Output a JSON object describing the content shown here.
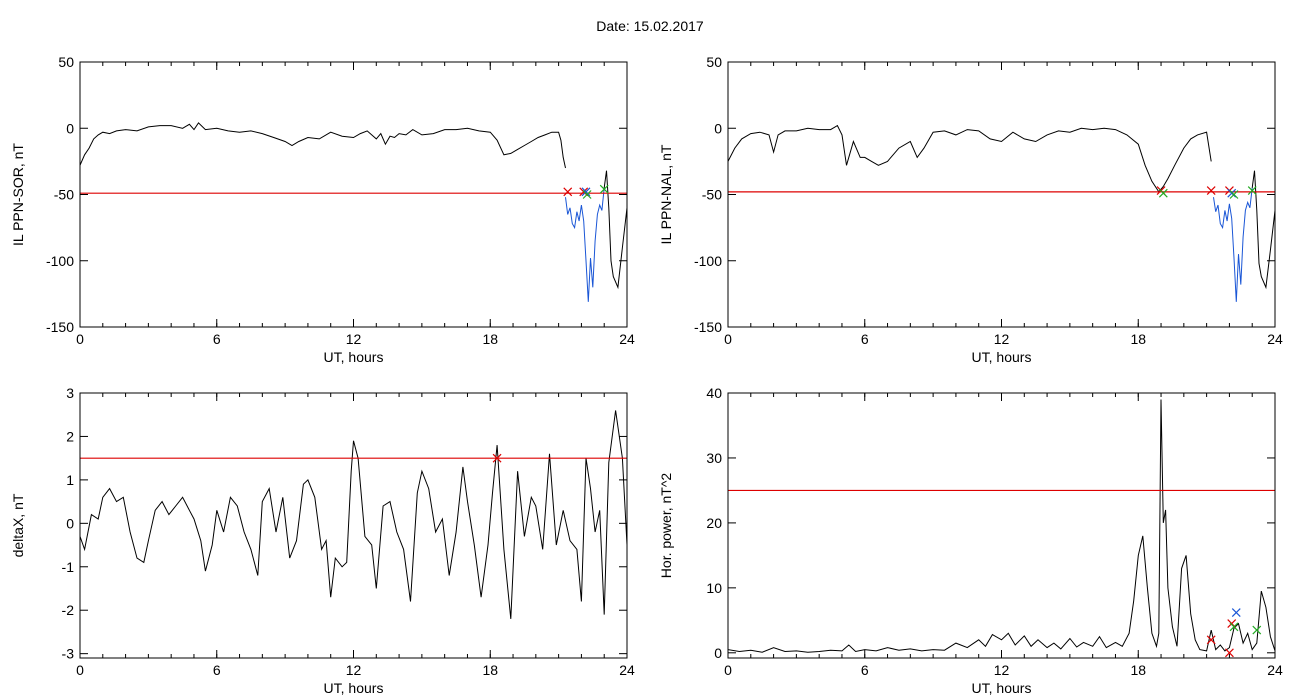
{
  "page": {
    "title": "Date:  15.02.2017"
  },
  "chart_data": [
    {
      "type": "line",
      "xlabel": "UT, hours",
      "ylabel": "IL PPN-SOR, nT",
      "xlim": [
        0,
        24
      ],
      "ylim": [
        -150,
        50
      ],
      "xticks": [
        0,
        6,
        12,
        18,
        24
      ],
      "yticks": [
        50,
        0,
        -50,
        -100,
        -150
      ],
      "threshold": -49,
      "threshold_color": "#dd0000",
      "grid": false,
      "series": [
        {
          "color": "#000000",
          "x": [
            0,
            0.2,
            0.4,
            0.6,
            0.8,
            1,
            1.3,
            1.6,
            2,
            2.5,
            3,
            3.5,
            4,
            4.5,
            4.8,
            5,
            5.2,
            5.5,
            6,
            6.5,
            7,
            7.5,
            8,
            8.5,
            9,
            9.3,
            9.6,
            10,
            10.5,
            11,
            11.5,
            12,
            12.3,
            12.6,
            13,
            13.2,
            13.4,
            13.6,
            13.8,
            14,
            14.3,
            14.6,
            15,
            15.5,
            16,
            16.5,
            17,
            17.5,
            18,
            18.3,
            18.6,
            18.9,
            19.2,
            19.5,
            19.8,
            20.1,
            20.4,
            20.7,
            21,
            21.1,
            21.2,
            21.3
          ],
          "y": [
            -28,
            -20,
            -15,
            -8,
            -5,
            -3,
            -4,
            -2,
            -1,
            -2,
            1,
            2,
            2,
            0,
            3,
            -1,
            4,
            -1,
            0,
            -2,
            -3,
            -2,
            -4,
            -7,
            -10,
            -13,
            -10,
            -7,
            -8,
            -3,
            -6,
            -7,
            -4,
            -2,
            -8,
            -4,
            -12,
            -6,
            -7,
            -4,
            -5,
            -1,
            -5,
            -4,
            -1,
            -1,
            0,
            -2,
            -3,
            -9,
            -20,
            -19,
            -16,
            -13,
            -10,
            -7,
            -5,
            -3,
            -3,
            -9,
            -22,
            -30
          ]
        },
        {
          "color": "#1a56d6",
          "x": [
            21.3,
            21.4,
            21.5,
            21.6,
            21.7,
            21.8,
            21.9,
            22,
            22.1,
            22.2,
            22.3,
            22.4,
            22.5,
            22.6,
            22.7,
            22.8,
            22.9,
            23
          ],
          "y": [
            -52,
            -65,
            -60,
            -72,
            -75,
            -63,
            -70,
            -58,
            -70,
            -100,
            -131,
            -98,
            -120,
            -85,
            -65,
            -58,
            -62,
            -45
          ]
        },
        {
          "color": "#000000",
          "x": [
            23,
            23.1,
            23.2,
            23.3,
            23.4,
            23.6,
            23.8,
            24
          ],
          "y": [
            -45,
            -32,
            -60,
            -100,
            -112,
            -120,
            -90,
            -60
          ]
        }
      ],
      "markers": [
        {
          "x": 21.4,
          "y": -48,
          "color": "#dd0000"
        },
        {
          "x": 22.1,
          "y": -48,
          "color": "#dd0000"
        },
        {
          "x": 22.2,
          "y": -48,
          "color": "#1a56d6"
        },
        {
          "x": 22.25,
          "y": -50,
          "color": "#22aa22"
        },
        {
          "x": 23.0,
          "y": -46,
          "color": "#22aa22"
        }
      ]
    },
    {
      "type": "line",
      "xlabel": "UT, hours",
      "ylabel": "IL PPN-NAL, nT",
      "xlim": [
        0,
        24
      ],
      "ylim": [
        -150,
        50
      ],
      "xticks": [
        0,
        6,
        12,
        18,
        24
      ],
      "yticks": [
        50,
        0,
        -50,
        -100,
        -150
      ],
      "threshold": -48,
      "threshold_color": "#dd0000",
      "grid": false,
      "series": [
        {
          "color": "#000000",
          "x": [
            0,
            0.3,
            0.6,
            1,
            1.4,
            1.8,
            2,
            2.2,
            2.5,
            3,
            3.5,
            4,
            4.5,
            4.8,
            5,
            5.2,
            5.5,
            5.8,
            6,
            6.3,
            6.6,
            7,
            7.5,
            8,
            8.3,
            8.6,
            9,
            9.5,
            10,
            10.5,
            11,
            11.5,
            12,
            12.5,
            13,
            13.5,
            14,
            14.5,
            15,
            15.5,
            16,
            16.5,
            17,
            17.5,
            18,
            18.3,
            18.6,
            18.9,
            19.1,
            19.3,
            19.6,
            20,
            20.3,
            20.6,
            21,
            21.2
          ],
          "y": [
            -25,
            -15,
            -8,
            -4,
            -3,
            -5,
            -18,
            -5,
            -2,
            -2,
            0,
            -1,
            -1,
            2,
            -5,
            -28,
            -10,
            -22,
            -22,
            -25,
            -28,
            -25,
            -15,
            -10,
            -22,
            -15,
            -3,
            -2,
            -5,
            -1,
            -2,
            -8,
            -10,
            -3,
            -8,
            -10,
            -5,
            -2,
            -3,
            0,
            -1,
            0,
            -1,
            -5,
            -12,
            -28,
            -40,
            -48,
            -44,
            -38,
            -28,
            -15,
            -8,
            -5,
            -3,
            -25
          ]
        },
        {
          "color": "#1a56d6",
          "x": [
            21.3,
            21.4,
            21.5,
            21.6,
            21.7,
            21.8,
            21.9,
            22,
            22.1,
            22.2,
            22.3,
            22.4,
            22.5,
            22.6,
            22.7,
            22.8,
            22.9,
            23
          ],
          "y": [
            -52,
            -63,
            -58,
            -72,
            -75,
            -62,
            -70,
            -57,
            -68,
            -98,
            -131,
            -95,
            -118,
            -82,
            -62,
            -56,
            -60,
            -45
          ]
        },
        {
          "color": "#000000",
          "x": [
            23,
            23.1,
            23.2,
            23.3,
            23.4,
            23.6,
            23.8,
            24
          ],
          "y": [
            -45,
            -32,
            -62,
            -102,
            -112,
            -120,
            -92,
            -62
          ]
        }
      ],
      "markers": [
        {
          "x": 19.0,
          "y": -47,
          "color": "#dd0000"
        },
        {
          "x": 19.1,
          "y": -49,
          "color": "#22aa22"
        },
        {
          "x": 21.2,
          "y": -47,
          "color": "#dd0000"
        },
        {
          "x": 22.0,
          "y": -47,
          "color": "#dd0000"
        },
        {
          "x": 22.1,
          "y": -49,
          "color": "#1a56d6"
        },
        {
          "x": 22.2,
          "y": -50,
          "color": "#22aa22"
        },
        {
          "x": 23.0,
          "y": -47,
          "color": "#22aa22"
        }
      ]
    },
    {
      "type": "line",
      "xlabel": "UT, hours",
      "ylabel": "deltaX, nT",
      "xlim": [
        0,
        24
      ],
      "ylim": [
        -3.1,
        3
      ],
      "xticks": [
        0,
        6,
        12,
        18,
        24
      ],
      "yticks": [
        3,
        2,
        1,
        0,
        -1,
        -2,
        -3
      ],
      "threshold": 1.5,
      "threshold_color": "#dd0000",
      "grid": false,
      "series": [
        {
          "color": "#000000",
          "x": [
            0,
            0.2,
            0.5,
            0.8,
            1,
            1.3,
            1.6,
            1.9,
            2.2,
            2.5,
            2.8,
            3,
            3.3,
            3.6,
            3.9,
            4.2,
            4.5,
            4.8,
            5,
            5.3,
            5.5,
            5.8,
            6,
            6.3,
            6.6,
            6.9,
            7.2,
            7.5,
            7.8,
            8,
            8.3,
            8.6,
            8.9,
            9.2,
            9.5,
            9.8,
            10,
            10.3,
            10.6,
            10.8,
            11,
            11.2,
            11.5,
            11.7,
            11.9,
            12,
            12.2,
            12.5,
            12.8,
            13,
            13.3,
            13.6,
            13.9,
            14.2,
            14.5,
            14.8,
            15,
            15.3,
            15.6,
            15.9,
            16.2,
            16.5,
            16.8,
            17,
            17.3,
            17.6,
            17.9,
            18.1,
            18.3,
            18.6,
            18.9,
            19.2,
            19.5,
            19.8,
            20,
            20.3,
            20.6,
            20.9,
            21.2,
            21.5,
            21.8,
            22,
            22.2,
            22.4,
            22.6,
            22.8,
            23,
            23.2,
            23.5,
            23.8,
            24
          ],
          "y": [
            -0.3,
            -0.6,
            0.2,
            0.1,
            0.6,
            0.8,
            0.5,
            0.6,
            -0.2,
            -0.8,
            -0.9,
            -0.4,
            0.3,
            0.5,
            0.2,
            0.4,
            0.6,
            0.3,
            0.1,
            -0.4,
            -1.1,
            -0.5,
            0.3,
            -0.2,
            0.6,
            0.4,
            -0.2,
            -0.6,
            -1.2,
            0.5,
            0.8,
            -0.2,
            0.6,
            -0.8,
            -0.4,
            0.9,
            1.0,
            0.6,
            -0.6,
            -0.4,
            -1.7,
            -0.8,
            -1.0,
            -0.9,
            1.2,
            1.9,
            1.5,
            -0.3,
            -0.5,
            -1.5,
            0.4,
            0.5,
            -0.2,
            -0.6,
            -1.8,
            0.7,
            1.2,
            0.8,
            -0.2,
            0.1,
            -1.2,
            -0.2,
            1.3,
            0.5,
            -0.5,
            -1.7,
            -0.5,
            0.7,
            1.8,
            -0.6,
            -2.2,
            1.2,
            -0.3,
            0.6,
            0.4,
            -0.6,
            1.6,
            -0.5,
            0.3,
            -0.4,
            -0.6,
            -1.8,
            1.5,
            0.8,
            -0.2,
            0.3,
            -2.1,
            1.4,
            2.6,
            1.5,
            -0.5
          ]
        }
      ],
      "markers": [
        {
          "x": 18.3,
          "y": 1.5,
          "color": "#dd0000"
        }
      ]
    },
    {
      "type": "line",
      "xlabel": "UT, hours",
      "ylabel": "Hor. power, nT^2",
      "xlim": [
        0,
        24
      ],
      "ylim": [
        -0.8,
        40
      ],
      "xticks": [
        0,
        6,
        12,
        18,
        24
      ],
      "yticks": [
        40,
        30,
        20,
        10,
        0
      ],
      "threshold": 25,
      "threshold_color": "#dd0000",
      "grid": false,
      "series": [
        {
          "color": "#000000",
          "x": [
            0,
            0.5,
            1,
            1.5,
            2,
            2.5,
            3,
            3.5,
            4,
            4.5,
            5,
            5.3,
            5.6,
            6,
            6.5,
            7,
            7.5,
            8,
            8.5,
            9,
            9.5,
            10,
            10.5,
            11,
            11.3,
            11.6,
            12,
            12.3,
            12.6,
            13,
            13.3,
            13.6,
            14,
            14.3,
            14.6,
            15,
            15.3,
            15.6,
            16,
            16.3,
            16.6,
            17,
            17.3,
            17.6,
            17.8,
            18,
            18.2,
            18.4,
            18.6,
            18.8,
            18.9,
            19,
            19.1,
            19.2,
            19.3,
            19.5,
            19.7,
            19.9,
            20.1,
            20.3,
            20.5,
            20.7,
            21,
            21.2,
            21.4,
            21.6,
            21.8,
            22,
            22.2,
            22.4,
            22.6,
            22.8,
            23,
            23.2,
            23.4,
            23.6,
            23.8,
            24
          ],
          "y": [
            0.5,
            0.2,
            0.4,
            0.1,
            0.8,
            0.2,
            0.3,
            0.1,
            0.2,
            0.4,
            0.3,
            1.2,
            0.2,
            0.5,
            0.3,
            0.8,
            0.4,
            0.6,
            0.3,
            0.5,
            0.4,
            1.5,
            0.8,
            2.0,
            1.0,
            2.8,
            2.0,
            3.0,
            1.2,
            2.6,
            1.0,
            2.0,
            0.8,
            1.5,
            0.6,
            2.2,
            0.9,
            1.6,
            1.0,
            2.5,
            0.8,
            1.6,
            1.0,
            3.0,
            8.0,
            15.0,
            18.0,
            10.0,
            3.0,
            1.0,
            3.0,
            39.0,
            20.0,
            22.0,
            10.0,
            4.0,
            1.0,
            13.0,
            15.0,
            6.0,
            2.0,
            0.5,
            0.3,
            3.5,
            0.5,
            1.2,
            0.3,
            0.8,
            3.8,
            4.5,
            1.5,
            3.0,
            0.5,
            1.5,
            9.5,
            7.0,
            2.5,
            0.3
          ]
        }
      ],
      "markers": [
        {
          "x": 21.2,
          "y": 2.0,
          "color": "#dd0000"
        },
        {
          "x": 22.0,
          "y": 0.0,
          "color": "#dd0000"
        },
        {
          "x": 22.1,
          "y": 4.5,
          "color": "#dd0000"
        },
        {
          "x": 22.3,
          "y": 6.2,
          "color": "#1a56d6"
        },
        {
          "x": 22.2,
          "y": 4.0,
          "color": "#22aa22"
        },
        {
          "x": 23.2,
          "y": 3.5,
          "color": "#22aa22"
        }
      ]
    }
  ]
}
